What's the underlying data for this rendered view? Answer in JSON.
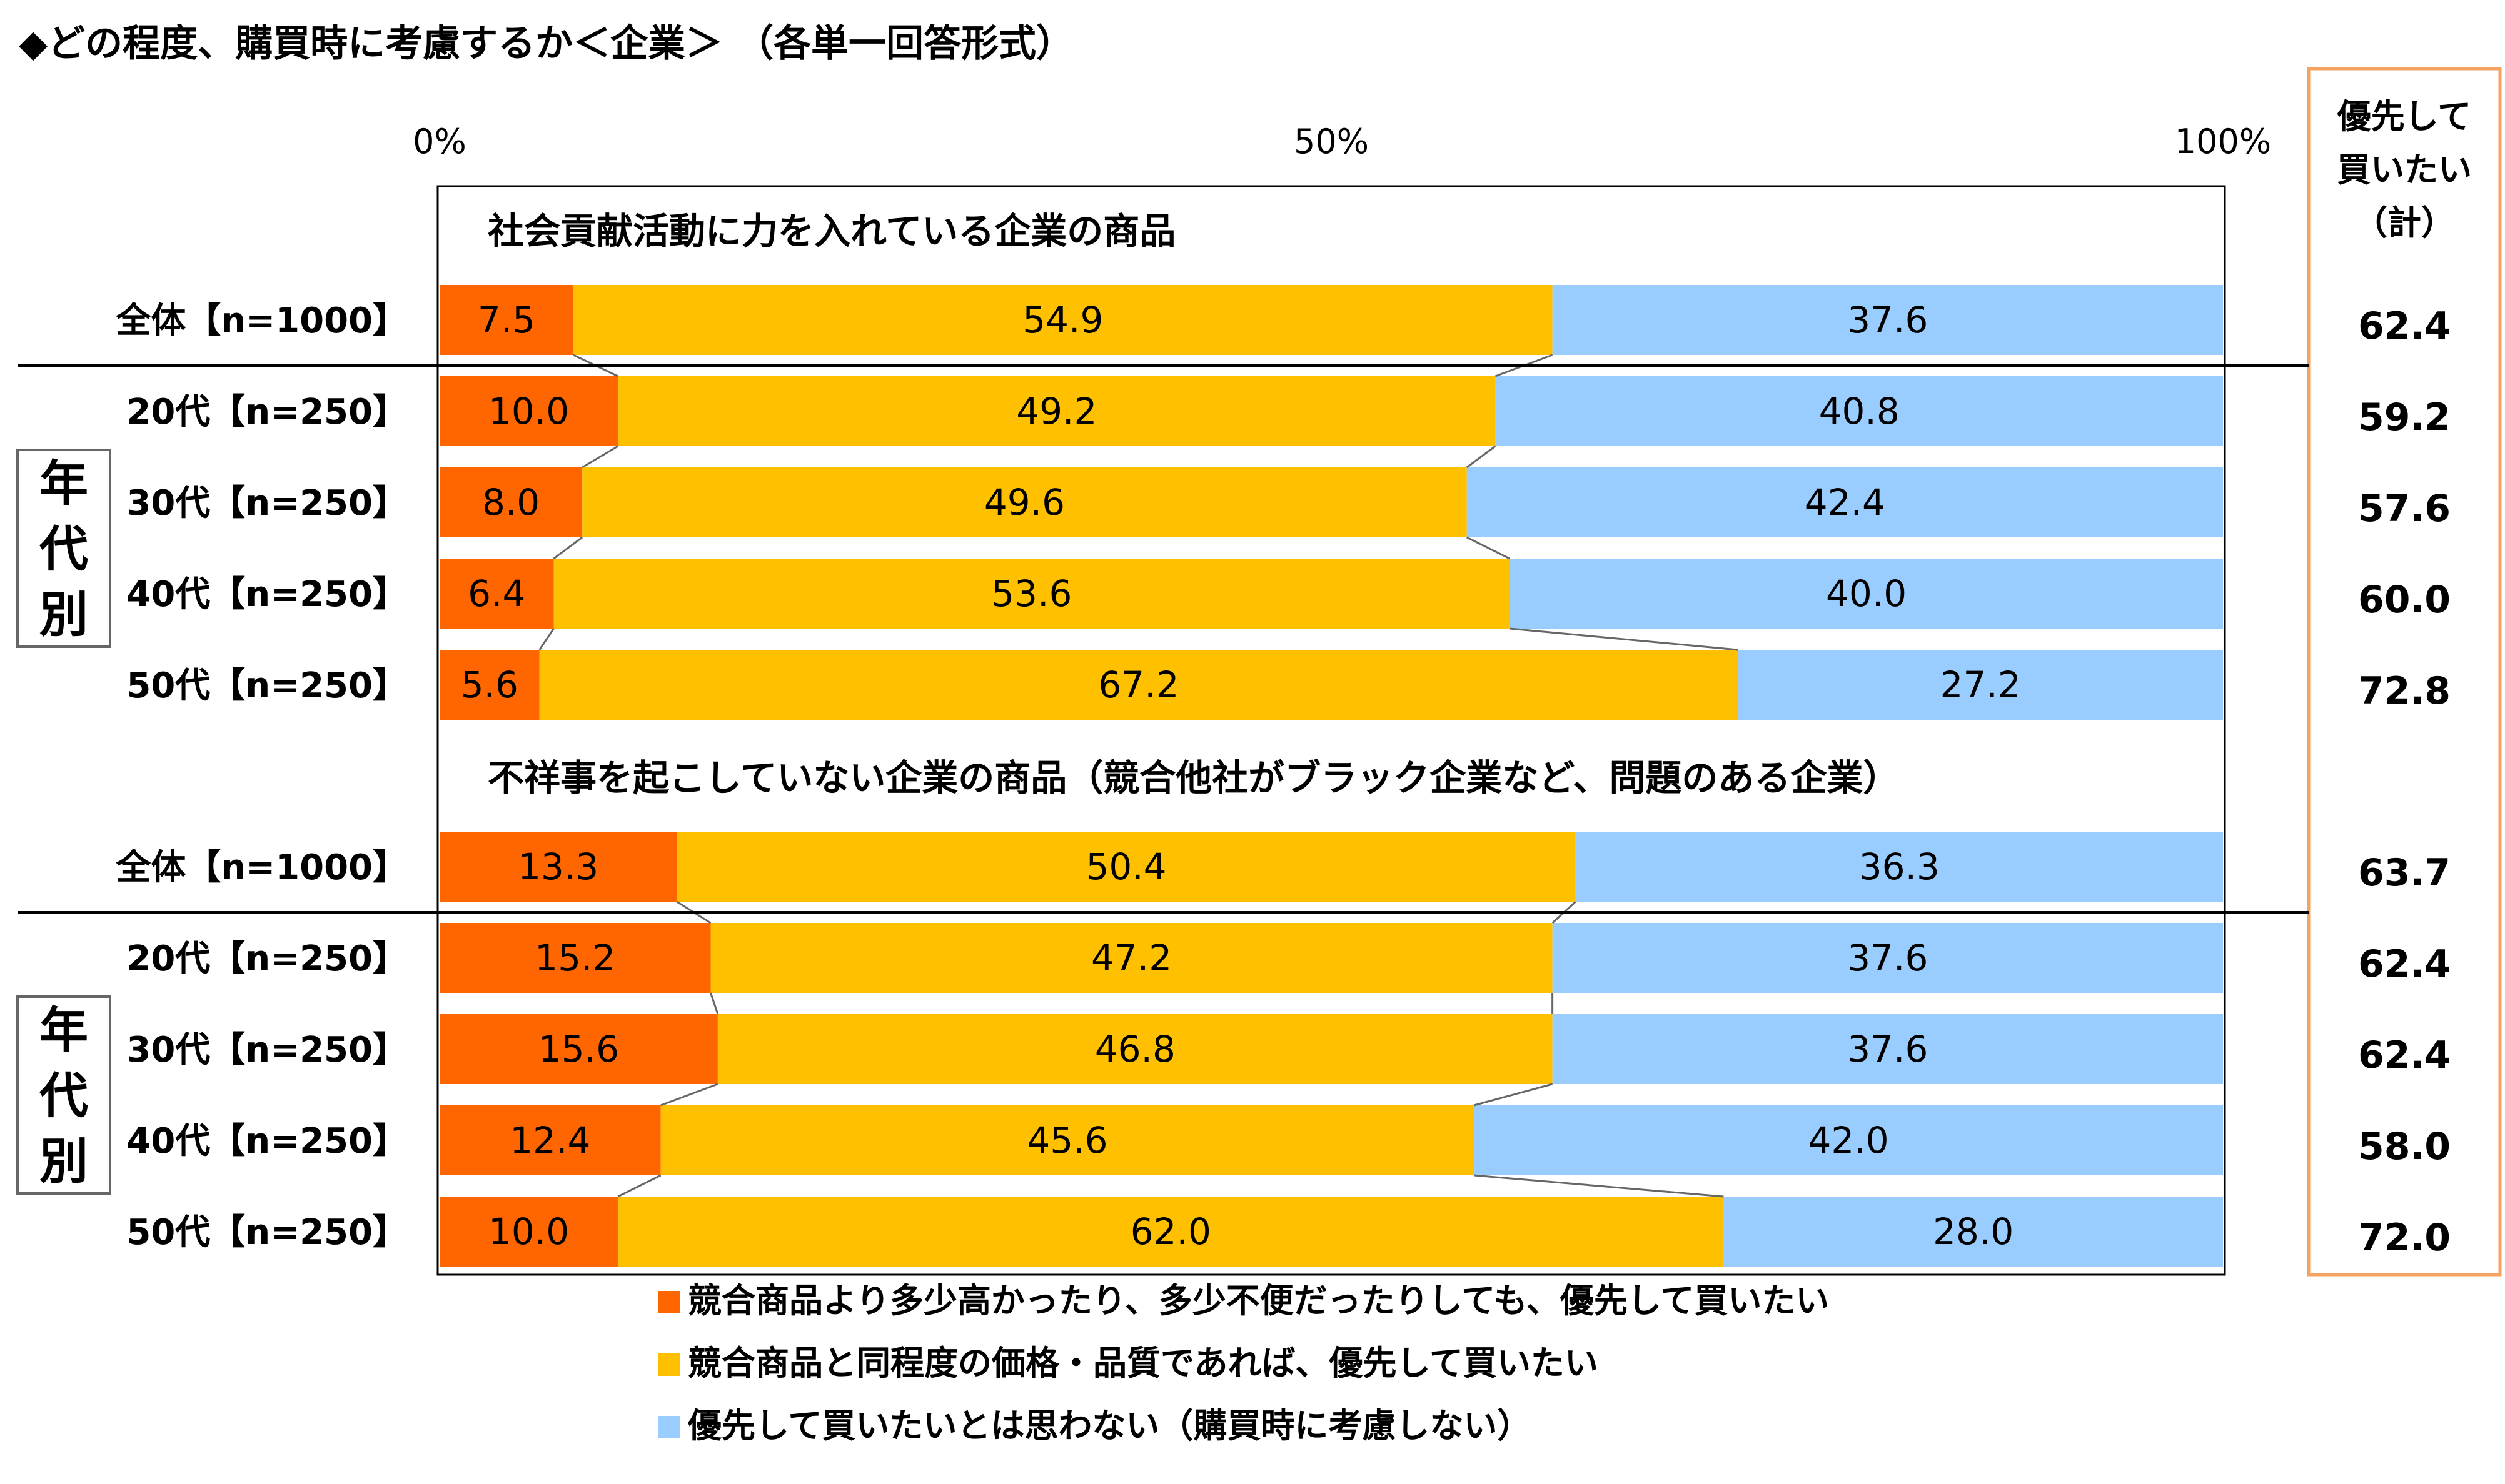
{
  "title": "◆どの程度、購買時に考慮するか＜企業＞ （各単一回答形式）",
  "total_header": [
    "優先して",
    "買いたい",
    "（計）"
  ],
  "group_label_chars": [
    "年",
    "代",
    "別"
  ],
  "colors": {
    "s1": "#FF6600",
    "s2": "#FFC000",
    "s3": "#99CCFF",
    "total_border": "#F4A460"
  },
  "chart_data": {
    "type": "bar",
    "orientation": "horizontal",
    "stacked": true,
    "xlim": [
      0,
      100
    ],
    "xticks": [
      "0%",
      "50%",
      "100%"
    ],
    "series_names": [
      "競合商品より多少高かったり、多少不便だったりしても、優先して買いたい",
      "競合商品と同程度の価格・品質であれば、優先して買いたい",
      "優先して買いたいとは思わない（購買時に考慮しない）"
    ],
    "legend_position": "bottom",
    "sections": [
      {
        "title": "社会貢献活動に力を入れている企業の商品",
        "rows": [
          {
            "label": "全体【n=1000】",
            "values": [
              7.5,
              54.9,
              37.6
            ],
            "labels": [
              "7.5",
              "54.9",
              "37.6"
            ],
            "total": "62.4"
          },
          {
            "label": "20代【n=250】",
            "values": [
              10.0,
              49.2,
              40.8
            ],
            "labels": [
              "10.0",
              "49.2",
              "40.8"
            ],
            "total": "59.2"
          },
          {
            "label": "30代【n=250】",
            "values": [
              8.0,
              49.6,
              42.4
            ],
            "labels": [
              "8.0",
              "49.6",
              "42.4"
            ],
            "total": "57.6"
          },
          {
            "label": "40代【n=250】",
            "values": [
              6.4,
              53.6,
              40.0
            ],
            "labels": [
              "6.4",
              "53.6",
              "40.0"
            ],
            "total": "60.0"
          },
          {
            "label": "50代【n=250】",
            "values": [
              5.6,
              67.2,
              27.2
            ],
            "labels": [
              "5.6",
              "67.2",
              "27.2"
            ],
            "total": "72.8"
          }
        ]
      },
      {
        "title": "不祥事を起こしていない企業の商品（競合他社がブラック企業など、問題のある企業）",
        "rows": [
          {
            "label": "全体【n=1000】",
            "values": [
              13.3,
              50.4,
              36.3
            ],
            "labels": [
              "13.3",
              "50.4",
              "36.3"
            ],
            "total": "63.7"
          },
          {
            "label": "20代【n=250】",
            "values": [
              15.2,
              47.2,
              37.6
            ],
            "labels": [
              "15.2",
              "47.2",
              "37.6"
            ],
            "total": "62.4"
          },
          {
            "label": "30代【n=250】",
            "values": [
              15.6,
              46.8,
              37.6
            ],
            "labels": [
              "15.6",
              "46.8",
              "37.6"
            ],
            "total": "62.4"
          },
          {
            "label": "40代【n=250】",
            "values": [
              12.4,
              45.6,
              42.0
            ],
            "labels": [
              "12.4",
              "45.6",
              "42.0"
            ],
            "total": "58.0"
          },
          {
            "label": "50代【n=250】",
            "values": [
              10.0,
              62.0,
              28.0
            ],
            "labels": [
              "10.0",
              "62.0",
              "28.0"
            ],
            "total": "72.0"
          }
        ]
      }
    ]
  }
}
